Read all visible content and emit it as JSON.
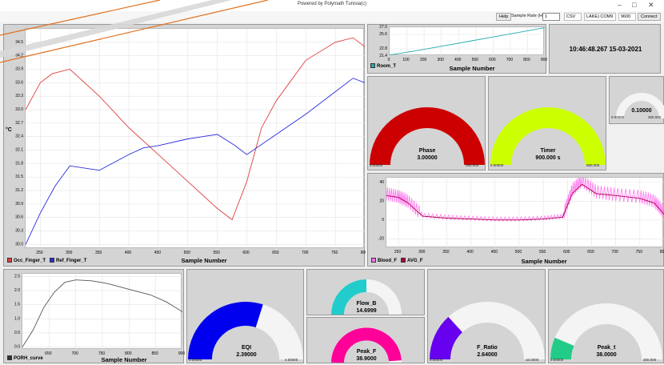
{
  "window": {
    "title": "Powered by Polymath Tunisia(c)",
    "minimize": "–",
    "maximize": "□",
    "close": "✕"
  },
  "toolbar": {
    "help_label": "Help",
    "sample_rate_label": "Sample Rate (Hz)",
    "sample_rate_value": "1",
    "format_value": "CSV",
    "port_value": "LAKE) COM9",
    "baud_value": "9600",
    "connect_label": "Connect"
  },
  "main_chart": {
    "xlabel": "Sample Number",
    "ylabel": "°C",
    "legend": [
      {
        "name": "Occ_Finger_T",
        "color": "#e04040"
      },
      {
        "name": "Ref_Finger_T",
        "color": "#2a2ae0"
      }
    ]
  },
  "room_chart": {
    "xlabel": "Sample Number",
    "legend": "Room_T",
    "color": "#22aaaa"
  },
  "clock": "10:46:48.267 15-03-2021",
  "gauges": {
    "phase": {
      "name": "Phase",
      "value": "3.00000",
      "min": "0.00000",
      "max": "360.000",
      "fraction": 1.0,
      "color": "#cc0000"
    },
    "timer": {
      "name": "Timer",
      "value": "900.000 s",
      "min": "0.00000",
      "max": "900.000",
      "fraction": 1.0,
      "color": "#ccff00"
    },
    "small": {
      "name": "",
      "value": "0.10000",
      "min": "0.00000",
      "max": "300.000",
      "fraction": 0.0003,
      "color": "#888888"
    },
    "eqi": {
      "name": "EQI",
      "value": "2.39000",
      "min": "0.00000",
      "max": "4.00000",
      "fraction": 0.5975,
      "color": "#0000ee"
    },
    "flow": {
      "name": "Flow_B",
      "value": "14.6999",
      "fraction": 0.5,
      "color": "#22cccc"
    },
    "peakf": {
      "name": "Peak_F",
      "value": "38.9000",
      "fraction": 0.98,
      "color": "#ff0099"
    },
    "fratio": {
      "name": "F_Ratio",
      "value": "2.64000",
      "min": "0.00000",
      "max": "10.0000",
      "fraction": 0.264,
      "color": "#6600ee"
    },
    "peakt": {
      "name": "Peak_t",
      "value": "38.0000",
      "min": "0.00000",
      "max": "300.000",
      "fraction": 0.127,
      "color": "#22cc88"
    }
  },
  "blood_chart": {
    "xlabel": "Sample Number",
    "legend": [
      {
        "name": "Blood_F",
        "color": "#ff77ee"
      },
      {
        "name": "AVG_F",
        "color": "#aa0044"
      }
    ]
  },
  "porh_chart": {
    "xlabel": "Sample Number",
    "legend": "PORH_curve",
    "color": "#555555"
  },
  "chart_data": [
    {
      "type": "line",
      "title": "",
      "xlabel": "Sample Number",
      "ylabel": "°C",
      "xlim": [
        225,
        800
      ],
      "ylim": [
        29.9,
        34.8
      ],
      "x_ticks": [
        "250",
        "300",
        "350",
        "400",
        "450",
        "500",
        "550",
        "600",
        "650",
        "700",
        "750",
        "800"
      ],
      "y_ticks": [
        "34.5",
        "34.2",
        "33.9",
        "33.6",
        "33.3",
        "33.0",
        "32.7",
        "32.4",
        "32.1",
        "31.8",
        "31.5",
        "31.2",
        "30.9",
        "30.6",
        "30.3",
        "30.0"
      ],
      "series": [
        {
          "name": "Occ_Finger_T",
          "x": [
            225,
            250,
            270,
            300,
            350,
            400,
            450,
            500,
            550,
            575,
            600,
            625,
            650,
            700,
            750,
            780,
            800
          ],
          "y": [
            33.0,
            33.6,
            33.8,
            33.9,
            33.3,
            32.6,
            32.0,
            31.4,
            30.8,
            30.55,
            31.4,
            32.6,
            33.2,
            34.1,
            34.5,
            34.6,
            34.4
          ]
        },
        {
          "name": "Ref_Finger_T",
          "x": [
            225,
            250,
            275,
            300,
            350,
            400,
            425,
            450,
            500,
            550,
            580,
            600,
            650,
            700,
            750,
            780,
            800
          ],
          "y": [
            30.0,
            30.7,
            31.3,
            31.75,
            31.65,
            32.0,
            32.15,
            32.2,
            32.35,
            32.45,
            32.2,
            32.0,
            32.45,
            32.9,
            33.4,
            33.7,
            33.6
          ]
        }
      ]
    },
    {
      "type": "line",
      "xlabel": "Sample Number",
      "xlim": [
        0,
        900
      ],
      "ylim": [
        21.4,
        27.0
      ],
      "x_ticks": [
        "0",
        "100",
        "200",
        "300",
        "400",
        "500",
        "600",
        "700",
        "800",
        "900"
      ],
      "y_ticks": [
        "27.0",
        "25.6",
        "22.8",
        "21.4"
      ],
      "series": [
        {
          "name": "Room_T",
          "x": [
            0,
            150,
            300,
            450,
            600,
            750,
            900
          ],
          "y": [
            21.6,
            22.4,
            23.3,
            24.2,
            25.1,
            26.0,
            26.9
          ]
        }
      ]
    },
    {
      "type": "line",
      "xlabel": "Sample Number",
      "xlim": [
        225,
        800
      ],
      "ylim": [
        -30,
        45
      ],
      "x_ticks": [
        "250",
        "300",
        "350",
        "400",
        "450",
        "500",
        "550",
        "600",
        "650",
        "700",
        "750",
        "800"
      ],
      "y_ticks": [
        "40",
        "20",
        "0",
        "-20"
      ],
      "series": [
        {
          "name": "Blood_F",
          "x": [
            225,
            250,
            270,
            300,
            350,
            400,
            450,
            500,
            550,
            590,
            610,
            630,
            660,
            700,
            750,
            780,
            800
          ],
          "y": [
            28,
            25,
            20,
            5,
            3,
            2,
            1,
            1,
            2,
            4,
            32,
            42,
            30,
            27,
            25,
            20,
            8
          ]
        },
        {
          "name": "AVG_F",
          "x": [
            225,
            250,
            270,
            300,
            350,
            400,
            450,
            500,
            550,
            590,
            610,
            630,
            660,
            700,
            750,
            780,
            800
          ],
          "y": [
            26,
            24,
            18,
            4,
            2,
            1,
            0,
            0,
            1,
            3,
            28,
            38,
            28,
            26,
            23,
            18,
            6
          ]
        }
      ]
    },
    {
      "type": "line",
      "xlabel": "Sample Number",
      "xlim": [
        600,
        900
      ],
      "ylim": [
        -0.1,
        2.6
      ],
      "x_ticks": [
        "650",
        "700",
        "750",
        "800",
        "850",
        "900"
      ],
      "y_ticks": [
        "2.5",
        "2.0",
        "1.5",
        "1.0",
        "0.5",
        "0.0"
      ],
      "series": [
        {
          "name": "PORH_curve",
          "x": [
            600,
            620,
            640,
            660,
            680,
            700,
            730,
            760,
            800,
            840,
            870,
            900
          ],
          "y": [
            0.0,
            0.6,
            1.4,
            1.95,
            2.3,
            2.38,
            2.35,
            2.25,
            2.05,
            1.85,
            1.6,
            1.25
          ]
        }
      ]
    }
  ]
}
